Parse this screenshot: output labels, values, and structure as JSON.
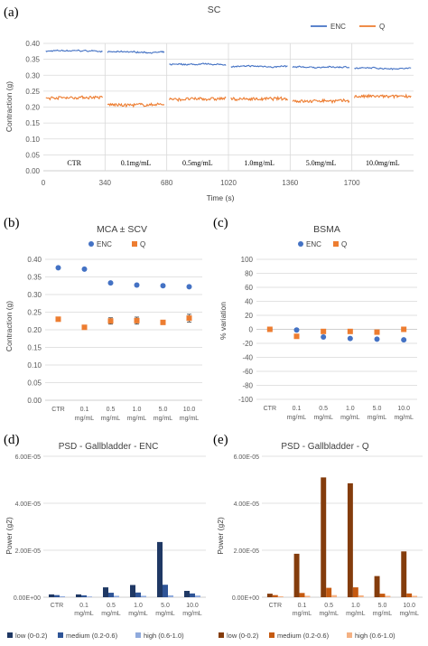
{
  "chart_data": [
    {
      "id": "a",
      "type": "line",
      "panel_label": "(a)",
      "title": "SC",
      "xlabel": "Time (s)",
      "ylabel": "Contraction (g)",
      "ylim": [
        0,
        0.4
      ],
      "yticks": [
        "0.00",
        "0.05",
        "0.10",
        "0.15",
        "0.20",
        "0.25",
        "0.30",
        "0.35",
        "0.40"
      ],
      "xlim": [
        0,
        2040
      ],
      "xticks": [
        "0",
        "340",
        "680",
        "1020",
        "1360",
        "1700"
      ],
      "segments": [
        "CTR",
        "0.1mg/mL",
        "0.5mg/mL",
        "1.0mg/mL",
        "5.0mg/mL",
        "10.0mg/mL"
      ],
      "legend_position": "top-right",
      "series": [
        {
          "name": "ENC",
          "color": "#4472c4",
          "segment_levels": [
            0.376,
            0.372,
            0.333,
            0.327,
            0.325,
            0.322
          ]
        },
        {
          "name": "Q",
          "color": "#ed7d31",
          "segment_levels": [
            0.23,
            0.207,
            0.225,
            0.226,
            0.22,
            0.233
          ]
        }
      ]
    },
    {
      "id": "b",
      "type": "scatter",
      "panel_label": "(b)",
      "title": "MCA ± SCV",
      "ylabel": "Contraction (g)",
      "ylim": [
        0,
        0.4
      ],
      "yticks": [
        "0.00",
        "0.05",
        "0.10",
        "0.15",
        "0.20",
        "0.25",
        "0.30",
        "0.35",
        "0.40"
      ],
      "categories": [
        [
          "CTR",
          ""
        ],
        [
          "0.1",
          "mg/mL"
        ],
        [
          "0.5",
          "mg/mL"
        ],
        [
          "1.0",
          "mg/mL"
        ],
        [
          "5.0",
          "mg/mL"
        ],
        [
          "10.0",
          "mg/mL"
        ]
      ],
      "legend_position": "top",
      "series": [
        {
          "name": "ENC",
          "color": "#4472c4",
          "marker": "circle",
          "values": [
            0.376,
            0.372,
            0.333,
            0.327,
            0.325,
            0.322
          ],
          "errors": [
            0.002,
            0.002,
            0.003,
            0.003,
            0.003,
            0.003
          ]
        },
        {
          "name": "Q",
          "color": "#ed7d31",
          "marker": "square",
          "values": [
            0.23,
            0.207,
            0.225,
            0.226,
            0.221,
            0.233
          ],
          "errors": [
            0.004,
            0.005,
            0.009,
            0.01,
            0.006,
            0.011
          ]
        }
      ]
    },
    {
      "id": "c",
      "type": "scatter",
      "panel_label": "(c)",
      "title": "BSMA",
      "ylabel": "% variation",
      "ylim": [
        -100,
        100
      ],
      "yticks": [
        "100",
        "80",
        "60",
        "40",
        "20",
        "0",
        "-20",
        "-40",
        "-60",
        "-80",
        "-100"
      ],
      "categories": [
        [
          "CTR",
          ""
        ],
        [
          "0.1",
          "mg/mL"
        ],
        [
          "0.5",
          "mg/mL"
        ],
        [
          "1.0",
          "mg/mL"
        ],
        [
          "5.0",
          "mg/mL"
        ],
        [
          "10.0",
          "mg/mL"
        ]
      ],
      "legend_position": "top",
      "series": [
        {
          "name": "ENC",
          "color": "#4472c4",
          "marker": "circle",
          "values": [
            0,
            -1,
            -11,
            -13,
            -14,
            -15
          ]
        },
        {
          "name": "Q",
          "color": "#ed7d31",
          "marker": "square",
          "values": [
            0,
            -10,
            -3,
            -3,
            -4,
            0
          ]
        }
      ]
    },
    {
      "id": "d",
      "type": "bar",
      "panel_label": "(d)",
      "title": "PSD - Gallbladder - ENC",
      "ylabel": "Power (g2)",
      "ylim": [
        0,
        6e-05
      ],
      "yticks": [
        "0.00E+00",
        "2.00E-05",
        "4.00E-05",
        "6.00E-05"
      ],
      "categories": [
        [
          "CTR",
          ""
        ],
        [
          "0.1",
          "mg/mL"
        ],
        [
          "0.5",
          "mg/mL"
        ],
        [
          "1.0",
          "mg/mL"
        ],
        [
          "5.0",
          "mg/mL"
        ],
        [
          "10.0",
          "mg/mL"
        ]
      ],
      "legend_position": "bottom",
      "series": [
        {
          "name": "low (0-0.2)",
          "color": "#1f3864",
          "values": [
            1.2e-06,
            1.2e-06,
            4.2e-06,
            5.2e-06,
            2.35e-05,
            2.7e-06
          ]
        },
        {
          "name": "medium (0.2-0.6)",
          "color": "#2f5597",
          "values": [
            9e-07,
            8e-07,
            1.9e-06,
            2e-06,
            5.3e-06,
            1.6e-06
          ]
        },
        {
          "name": "high (0.6-1.0)",
          "color": "#8faadc",
          "values": [
            4e-07,
            3e-07,
            6e-07,
            6e-07,
            8e-07,
            7e-07
          ]
        }
      ]
    },
    {
      "id": "e",
      "type": "bar",
      "panel_label": "(e)",
      "title": "PSD - Gallbladder - Q",
      "ylabel": "Power (g2)",
      "ylim": [
        0,
        6e-05
      ],
      "yticks": [
        "0.00E+00",
        "2.00E-05",
        "4.00E-05",
        "6.00E-05"
      ],
      "categories": [
        [
          "CTR",
          ""
        ],
        [
          "0.1",
          "mg/mL"
        ],
        [
          "0.5",
          "mg/mL"
        ],
        [
          "1.0",
          "mg/mL"
        ],
        [
          "5.0",
          "mg/mL"
        ],
        [
          "10.0",
          "mg/mL"
        ]
      ],
      "legend_position": "bottom",
      "series": [
        {
          "name": "low (0-0.2)",
          "color": "#843c0c",
          "values": [
            1.5e-06,
            1.85e-05,
            5.1e-05,
            4.85e-05,
            9e-06,
            1.95e-05
          ]
        },
        {
          "name": "medium (0.2-0.6)",
          "color": "#c55a11",
          "values": [
            9e-07,
            1.8e-06,
            4e-06,
            4.2e-06,
            1.5e-06,
            1.6e-06
          ]
        },
        {
          "name": "high (0.6-1.0)",
          "color": "#f4b183",
          "values": [
            4e-07,
            6e-07,
            9e-07,
            8e-07,
            6e-07,
            6e-07
          ]
        }
      ]
    }
  ]
}
